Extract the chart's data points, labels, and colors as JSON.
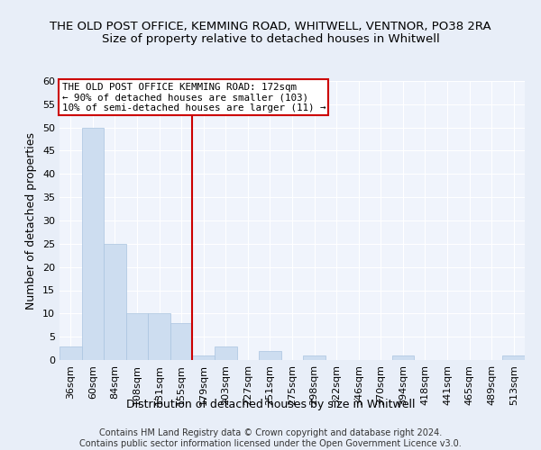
{
  "title": "THE OLD POST OFFICE, KEMMING ROAD, WHITWELL, VENTNOR, PO38 2RA",
  "subtitle": "Size of property relative to detached houses in Whitwell",
  "xlabel": "Distribution of detached houses by size in Whitwell",
  "ylabel": "Number of detached properties",
  "categories": [
    "36sqm",
    "60sqm",
    "84sqm",
    "108sqm",
    "131sqm",
    "155sqm",
    "179sqm",
    "203sqm",
    "227sqm",
    "251sqm",
    "275sqm",
    "298sqm",
    "322sqm",
    "346sqm",
    "370sqm",
    "394sqm",
    "418sqm",
    "441sqm",
    "465sqm",
    "489sqm",
    "513sqm"
  ],
  "values": [
    3,
    50,
    25,
    10,
    10,
    8,
    1,
    3,
    0,
    2,
    0,
    1,
    0,
    0,
    0,
    1,
    0,
    0,
    0,
    0,
    1
  ],
  "bar_color": "#cdddf0",
  "bar_edge_color": "#aac4e0",
  "vline_x_index": 6,
  "vline_color": "#cc0000",
  "ylim": [
    0,
    60
  ],
  "yticks": [
    0,
    5,
    10,
    15,
    20,
    25,
    30,
    35,
    40,
    45,
    50,
    55,
    60
  ],
  "annotation_text": "THE OLD POST OFFICE KEMMING ROAD: 172sqm\n← 90% of detached houses are smaller (103)\n10% of semi-detached houses are larger (11) →",
  "annotation_box_color": "#ffffff",
  "annotation_box_edge": "#cc0000",
  "footer": "Contains HM Land Registry data © Crown copyright and database right 2024.\nContains public sector information licensed under the Open Government Licence v3.0.",
  "bg_color": "#e8eef8",
  "plot_bg_color": "#f0f4fc",
  "grid_color": "#ffffff",
  "title_fontsize": 9.5,
  "subtitle_fontsize": 9.5,
  "axis_label_fontsize": 9,
  "tick_fontsize": 8,
  "footer_fontsize": 7
}
